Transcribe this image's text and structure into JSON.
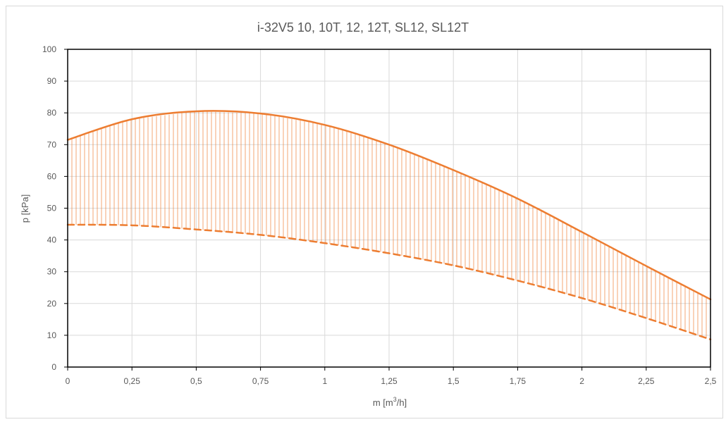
{
  "chart_data": {
    "type": "area",
    "title": "i-32V5 10, 10T, 12, 12T, SL12, SL12T",
    "xlabel": "m [m",
    "xlabel_sup": "3",
    "xlabel_suffix": "/h]",
    "ylabel": "p [kPa]",
    "xlim": [
      0,
      2.5
    ],
    "ylim": [
      0,
      100
    ],
    "x_ticks": [
      0,
      0.25,
      0.5,
      0.75,
      1,
      1.25,
      1.5,
      1.75,
      2,
      2.25,
      2.5
    ],
    "x_tick_labels": [
      "0",
      "0,25",
      "0,5",
      "0,75",
      "1",
      "1,25",
      "1,5",
      "1,75",
      "2",
      "2,25",
      "2,5"
    ],
    "y_ticks": [
      0,
      10,
      20,
      30,
      40,
      50,
      60,
      70,
      80,
      90,
      100
    ],
    "y_tick_labels": [
      "0",
      "10",
      "20",
      "30",
      "40",
      "50",
      "60",
      "70",
      "80",
      "90",
      "100"
    ],
    "grid": true,
    "color": "#ED7D31",
    "series": [
      {
        "style": "solid",
        "x": [
          0,
          0.25,
          0.5,
          0.75,
          1,
          1.25,
          1.5,
          1.75,
          2,
          2.25,
          2.5
        ],
        "values": [
          71.5,
          78,
          80.5,
          79.8,
          76.2,
          70,
          62,
          53,
          42.5,
          31.8,
          21.3
        ]
      },
      {
        "style": "dashed",
        "x": [
          0,
          0.25,
          0.5,
          0.75,
          1,
          1.25,
          1.5,
          1.75,
          2,
          2.25,
          2.5
        ],
        "values": [
          44.8,
          44.6,
          43.3,
          41.6,
          39,
          35.8,
          32,
          27.2,
          21.7,
          15.4,
          8.7
        ]
      }
    ]
  }
}
